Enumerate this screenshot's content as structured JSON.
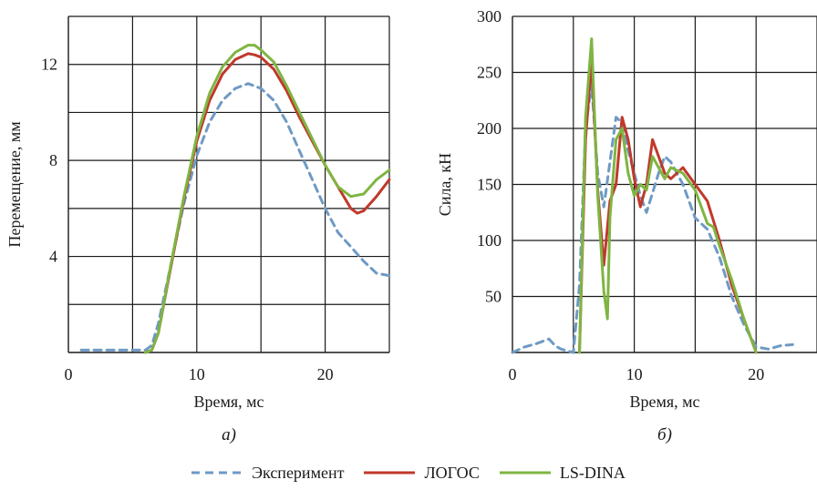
{
  "legend": {
    "items": [
      {
        "label": "Эксперимент",
        "color": "#6e9ac4",
        "dash": true
      },
      {
        "label": "ЛОГОС",
        "color": "#c0392b",
        "dash": false
      },
      {
        "label": "LS-DINA",
        "color": "#7fb542",
        "dash": false
      }
    ]
  },
  "chart_data": [
    {
      "type": "line",
      "caption": "а)",
      "xlabel": "Время, мс",
      "ylabel": "Перемещение, мм",
      "xlim": [
        0,
        25
      ],
      "ylim": [
        0,
        14
      ],
      "xticks": [
        0,
        10,
        20
      ],
      "yticks": [
        4,
        8,
        12
      ],
      "grid": true,
      "series": [
        {
          "name": "Эксперимент",
          "color": "#6e9ac4",
          "dash": true,
          "x": [
            1,
            2,
            3,
            4,
            5,
            6,
            6.5,
            7,
            8,
            9,
            10,
            11,
            12,
            13,
            14,
            15,
            16,
            17,
            18,
            19,
            20,
            21,
            22,
            23,
            24,
            25
          ],
          "y": [
            0.1,
            0.1,
            0.1,
            0.1,
            0.1,
            0.1,
            0.3,
            1.2,
            3.7,
            6.2,
            8.2,
            9.6,
            10.5,
            11.0,
            11.2,
            11.0,
            10.5,
            9.6,
            8.4,
            7.2,
            6.0,
            5.0,
            4.4,
            3.8,
            3.3,
            3.2
          ]
        },
        {
          "name": "ЛОГОС",
          "color": "#c0392b",
          "dash": false,
          "x": [
            6,
            6.5,
            7,
            8,
            9,
            10,
            11,
            12,
            13,
            14,
            14.5,
            15,
            16,
            17,
            18,
            19,
            20,
            21,
            22,
            22.5,
            23,
            24,
            25
          ],
          "y": [
            0,
            0.1,
            0.8,
            3.6,
            6.4,
            8.8,
            10.5,
            11.6,
            12.2,
            12.45,
            12.4,
            12.3,
            11.8,
            10.9,
            9.8,
            8.8,
            7.8,
            6.9,
            6.0,
            5.8,
            5.9,
            6.5,
            7.2
          ]
        },
        {
          "name": "LS-DINA",
          "color": "#7fb542",
          "dash": false,
          "x": [
            6,
            6.5,
            7,
            8,
            9,
            10,
            11,
            12,
            13,
            14,
            14.5,
            15,
            16,
            17,
            18,
            19,
            20,
            21,
            22,
            23,
            24,
            25
          ],
          "y": [
            0,
            0.1,
            0.8,
            3.7,
            6.5,
            9.0,
            10.8,
            11.9,
            12.5,
            12.8,
            12.8,
            12.6,
            12.1,
            11.1,
            10.0,
            8.9,
            7.8,
            6.9,
            6.5,
            6.6,
            7.2,
            7.6
          ]
        }
      ]
    },
    {
      "type": "line",
      "caption": "б)",
      "xlabel": "Время, мс",
      "ylabel": "Сила, кН",
      "xlim": [
        0,
        25
      ],
      "ylim": [
        0,
        300
      ],
      "xticks": [
        0,
        10,
        20
      ],
      "yticks": [
        50,
        100,
        150,
        200,
        250,
        300
      ],
      "grid": true,
      "series": [
        {
          "name": "Эксперимент",
          "color": "#6e9ac4",
          "dash": true,
          "x": [
            0,
            1,
            2,
            3,
            3.5,
            4,
            5,
            5.5,
            6,
            6.5,
            7,
            7.5,
            8,
            8.5,
            9,
            9.5,
            10,
            10.5,
            11,
            12,
            12.5,
            13,
            14,
            15,
            16,
            17,
            18,
            19,
            20,
            21,
            22,
            23
          ],
          "y": [
            0,
            5,
            8,
            12,
            6,
            3,
            0,
            60,
            200,
            240,
            160,
            130,
            170,
            210,
            205,
            180,
            160,
            140,
            125,
            160,
            175,
            170,
            150,
            120,
            110,
            85,
            50,
            25,
            5,
            3,
            6,
            7
          ]
        },
        {
          "name": "ЛОГОС",
          "color": "#c0392b",
          "dash": false,
          "x": [
            5.5,
            6,
            6.5,
            7,
            7.5,
            8,
            8.5,
            9,
            9.5,
            10,
            10.5,
            11,
            11.5,
            12,
            12.5,
            13,
            14,
            15,
            16,
            17,
            18,
            19,
            20
          ],
          "y": [
            0,
            190,
            262,
            145,
            78,
            135,
            150,
            210,
            190,
            155,
            130,
            150,
            190,
            175,
            160,
            155,
            165,
            150,
            135,
            100,
            60,
            30,
            0
          ]
        },
        {
          "name": "LS-DINA",
          "color": "#7fb542",
          "dash": false,
          "x": [
            5.5,
            6,
            6.5,
            7,
            7.5,
            7.8,
            8,
            8.5,
            9,
            9.5,
            10,
            10.5,
            11,
            11.5,
            12,
            12.5,
            13,
            14,
            15,
            16,
            16.5,
            17,
            18,
            19,
            20
          ],
          "y": [
            0,
            210,
            280,
            140,
            55,
            30,
            120,
            190,
            200,
            160,
            140,
            150,
            145,
            175,
            165,
            155,
            165,
            160,
            145,
            115,
            112,
            95,
            65,
            30,
            0
          ]
        }
      ]
    }
  ]
}
